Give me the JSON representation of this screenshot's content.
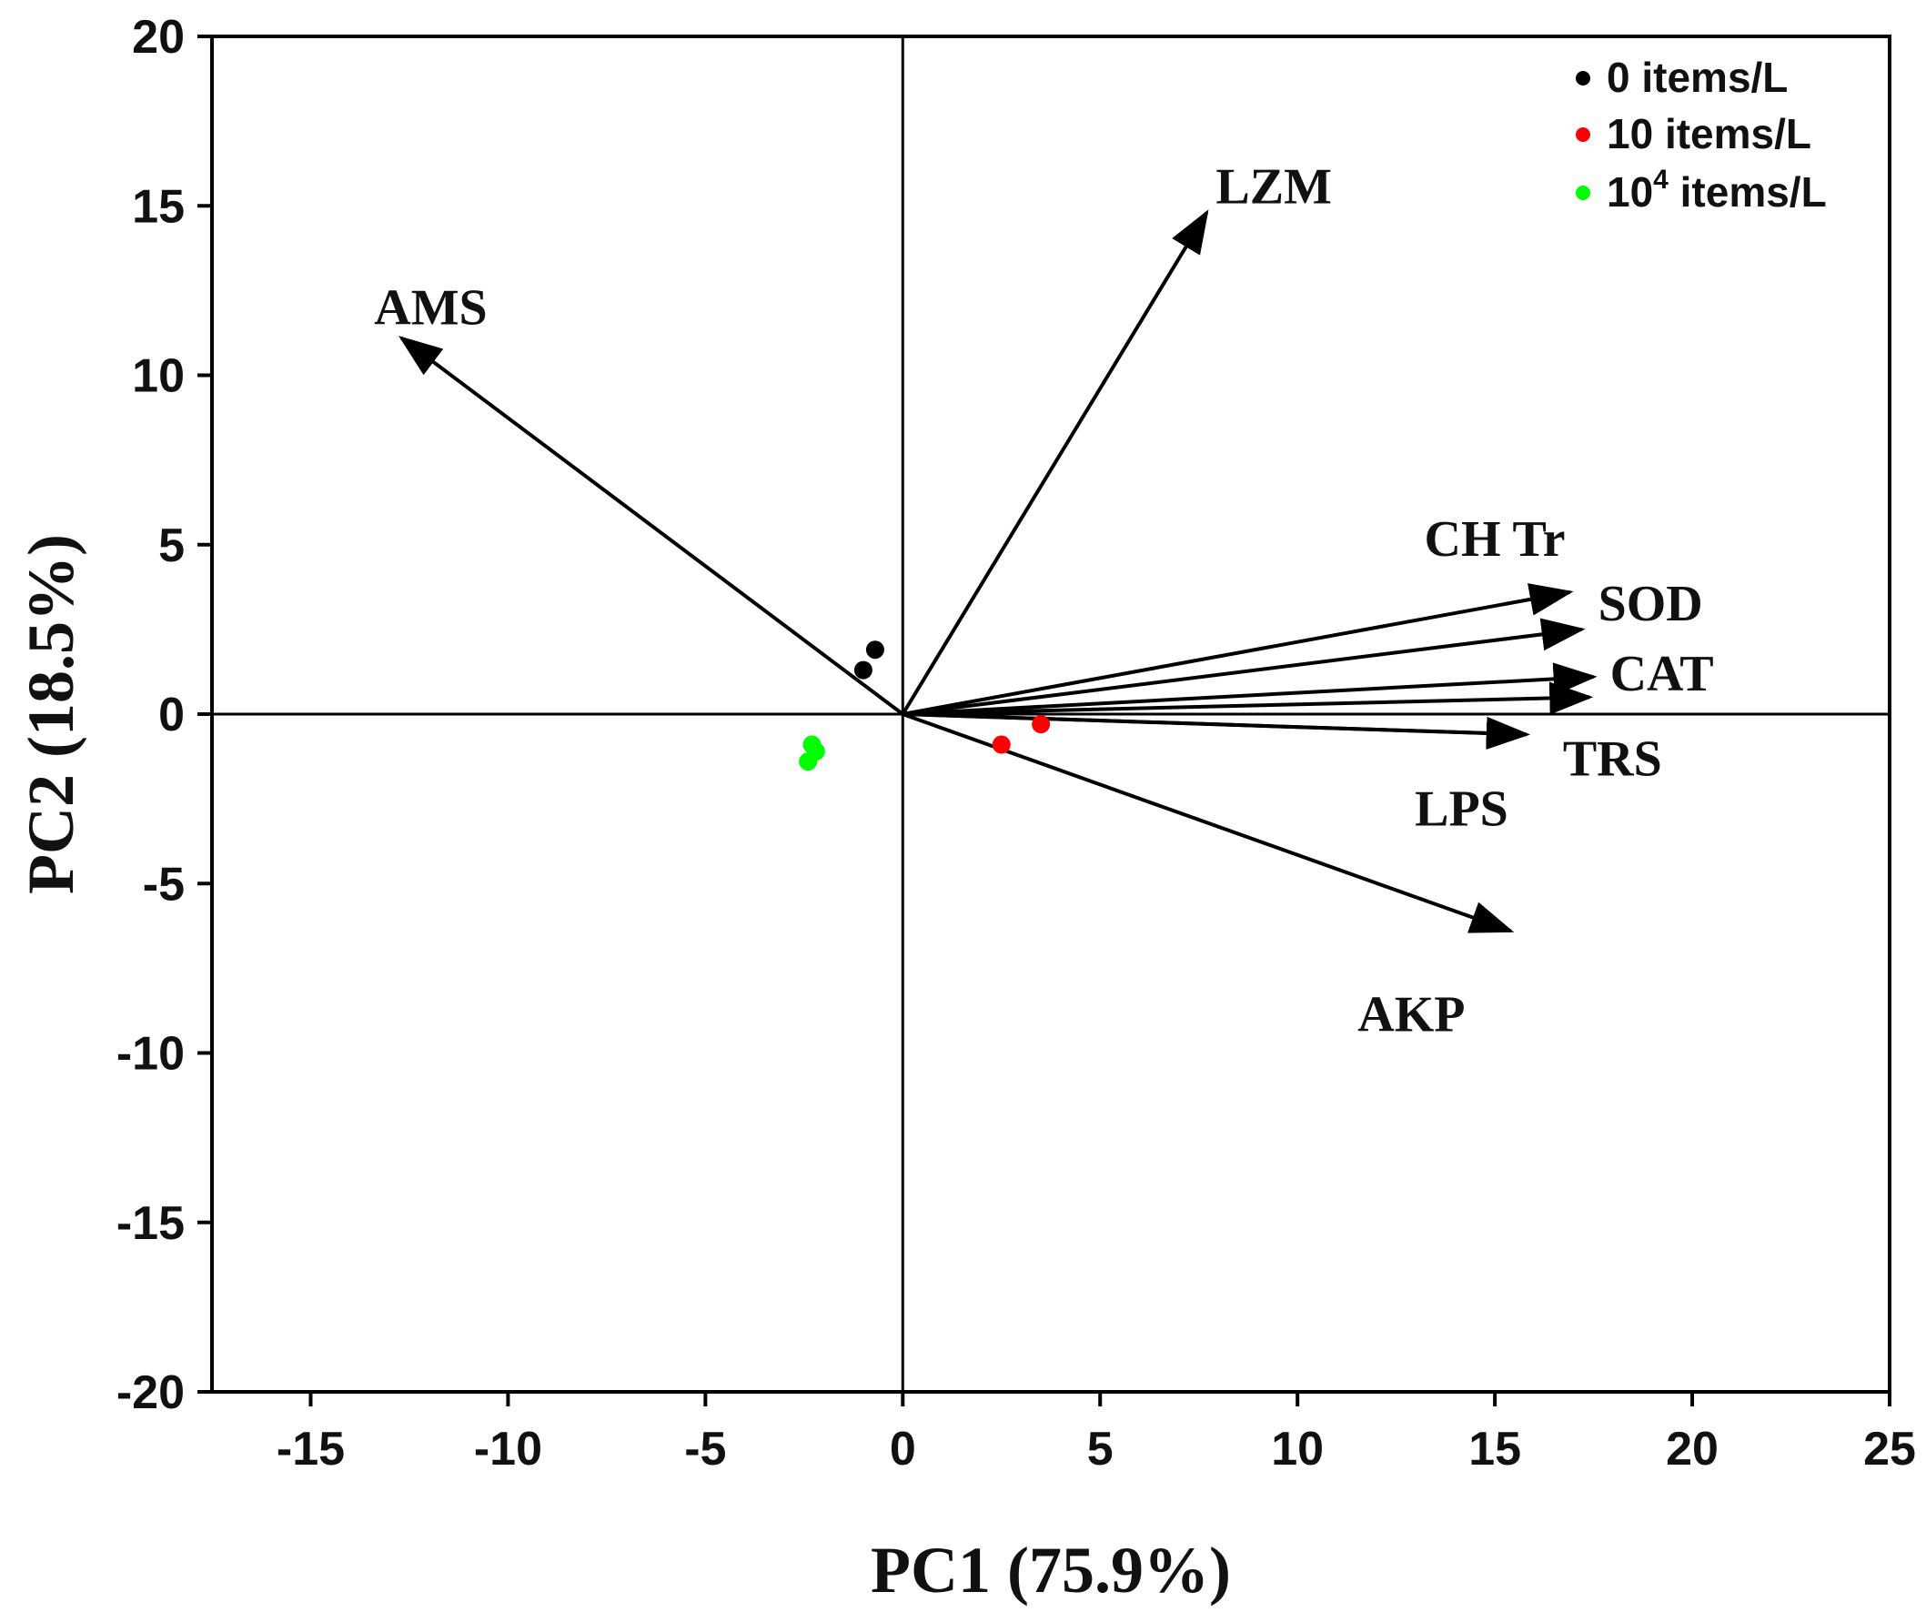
{
  "chart_data": {
    "type": "scatter",
    "subtype": "pca-biplot",
    "xlabel": "PC1 (75.9%)",
    "ylabel": "PC2 (18.5%)",
    "xlim": [
      -17.5,
      25
    ],
    "ylim": [
      -20,
      20
    ],
    "x_ticks": [
      -15,
      -10,
      -5,
      0,
      5,
      10,
      15,
      20,
      25
    ],
    "y_ticks": [
      -20,
      -15,
      -10,
      -5,
      0,
      5,
      10,
      15,
      20
    ],
    "legend_position": "top-right",
    "series": [
      {
        "name": "0  items/L",
        "label_main": "0  items/L",
        "color": "#000000",
        "points": [
          [
            -1.0,
            1.3
          ],
          [
            -0.7,
            1.9
          ]
        ]
      },
      {
        "name": "10  items/L",
        "label_main": "10  items/L",
        "color": "#ff0000",
        "points": [
          [
            2.5,
            -0.9
          ],
          [
            3.5,
            -0.3
          ]
        ]
      },
      {
        "name": "10^4 items/L",
        "label_main": "10",
        "label_sup": "4",
        "label_rest": " items/L",
        "color": "#00ff00",
        "points": [
          [
            -2.3,
            -0.9
          ],
          [
            -2.2,
            -1.1
          ],
          [
            -2.4,
            -1.4
          ]
        ]
      }
    ],
    "loadings": [
      {
        "name": "AMS",
        "x": -12.7,
        "y": 11.1
      },
      {
        "name": "LZM",
        "x": 7.7,
        "y": 14.8
      },
      {
        "name": "CH Tr",
        "x": 16.9,
        "y": 3.6
      },
      {
        "name": "SOD",
        "x": 17.2,
        "y": 2.5
      },
      {
        "name": "CAT",
        "x": 17.5,
        "y": 1.1
      },
      {
        "name": "",
        "x": 17.4,
        "y": 0.5
      },
      {
        "name": "TRS",
        "x": 15.8,
        "y": -0.6
      },
      {
        "name": "LPS",
        "x": 15.8,
        "y": -0.6
      },
      {
        "name": "AKP",
        "x": 15.4,
        "y": -6.4
      }
    ]
  }
}
